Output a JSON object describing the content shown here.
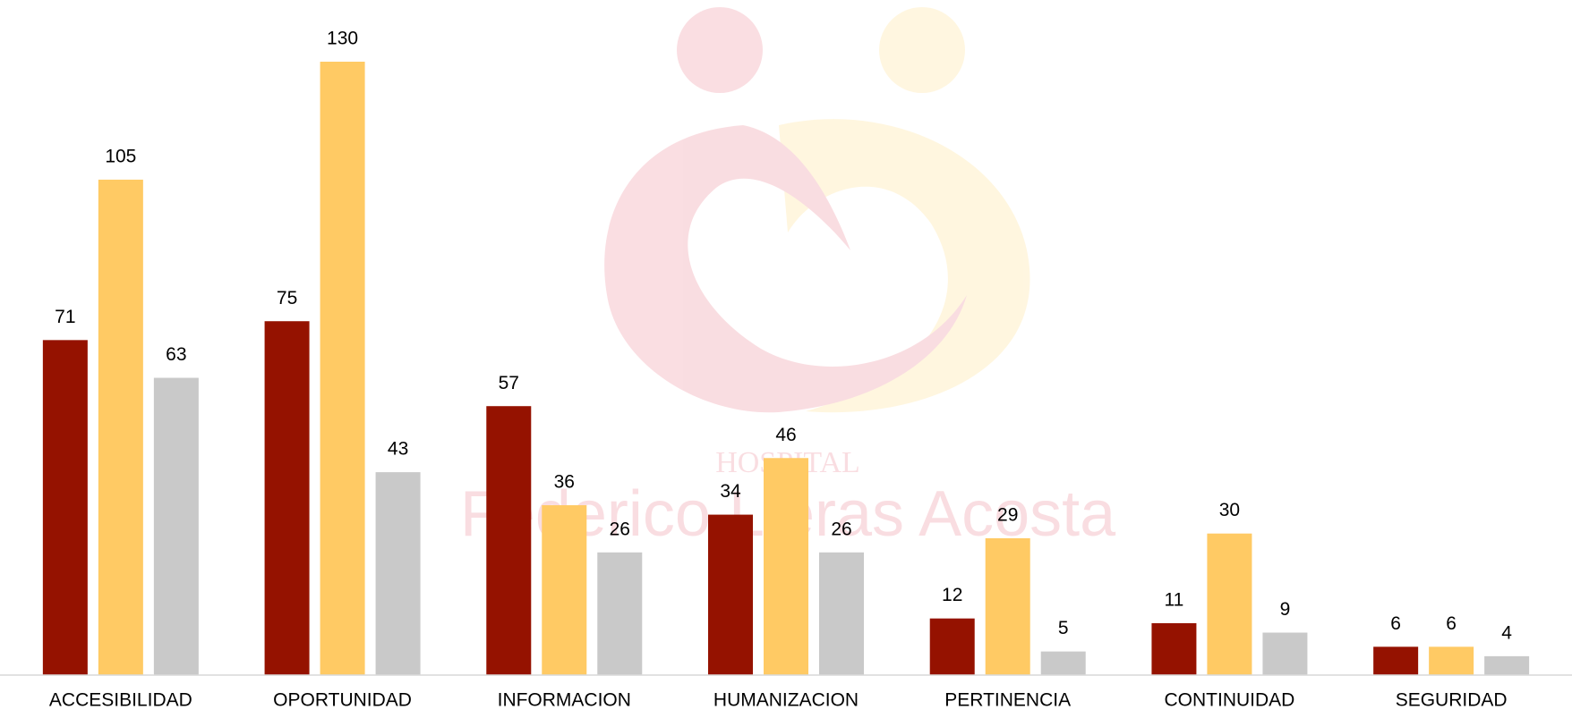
{
  "chart_data": {
    "type": "bar",
    "watermark": {
      "line1": "HOSPITAL",
      "line2": "Federico Lleras Acosta"
    },
    "categories": [
      "ACCESIBILIDAD",
      "OPORTUNIDAD",
      "INFORMACION",
      "HUMANIZACION",
      "PERTINENCIA",
      "CONTINUIDAD",
      "SEGURIDAD"
    ],
    "series": [
      {
        "color": "#951200",
        "values": [
          71,
          75,
          57,
          34,
          12,
          11,
          6
        ]
      },
      {
        "color": "#ffca64",
        "values": [
          105,
          130,
          36,
          46,
          29,
          30,
          6
        ]
      },
      {
        "color": "#c9c9c9",
        "values": [
          63,
          43,
          26,
          26,
          5,
          9,
          4
        ]
      }
    ],
    "ylim": [
      0,
      130
    ]
  }
}
